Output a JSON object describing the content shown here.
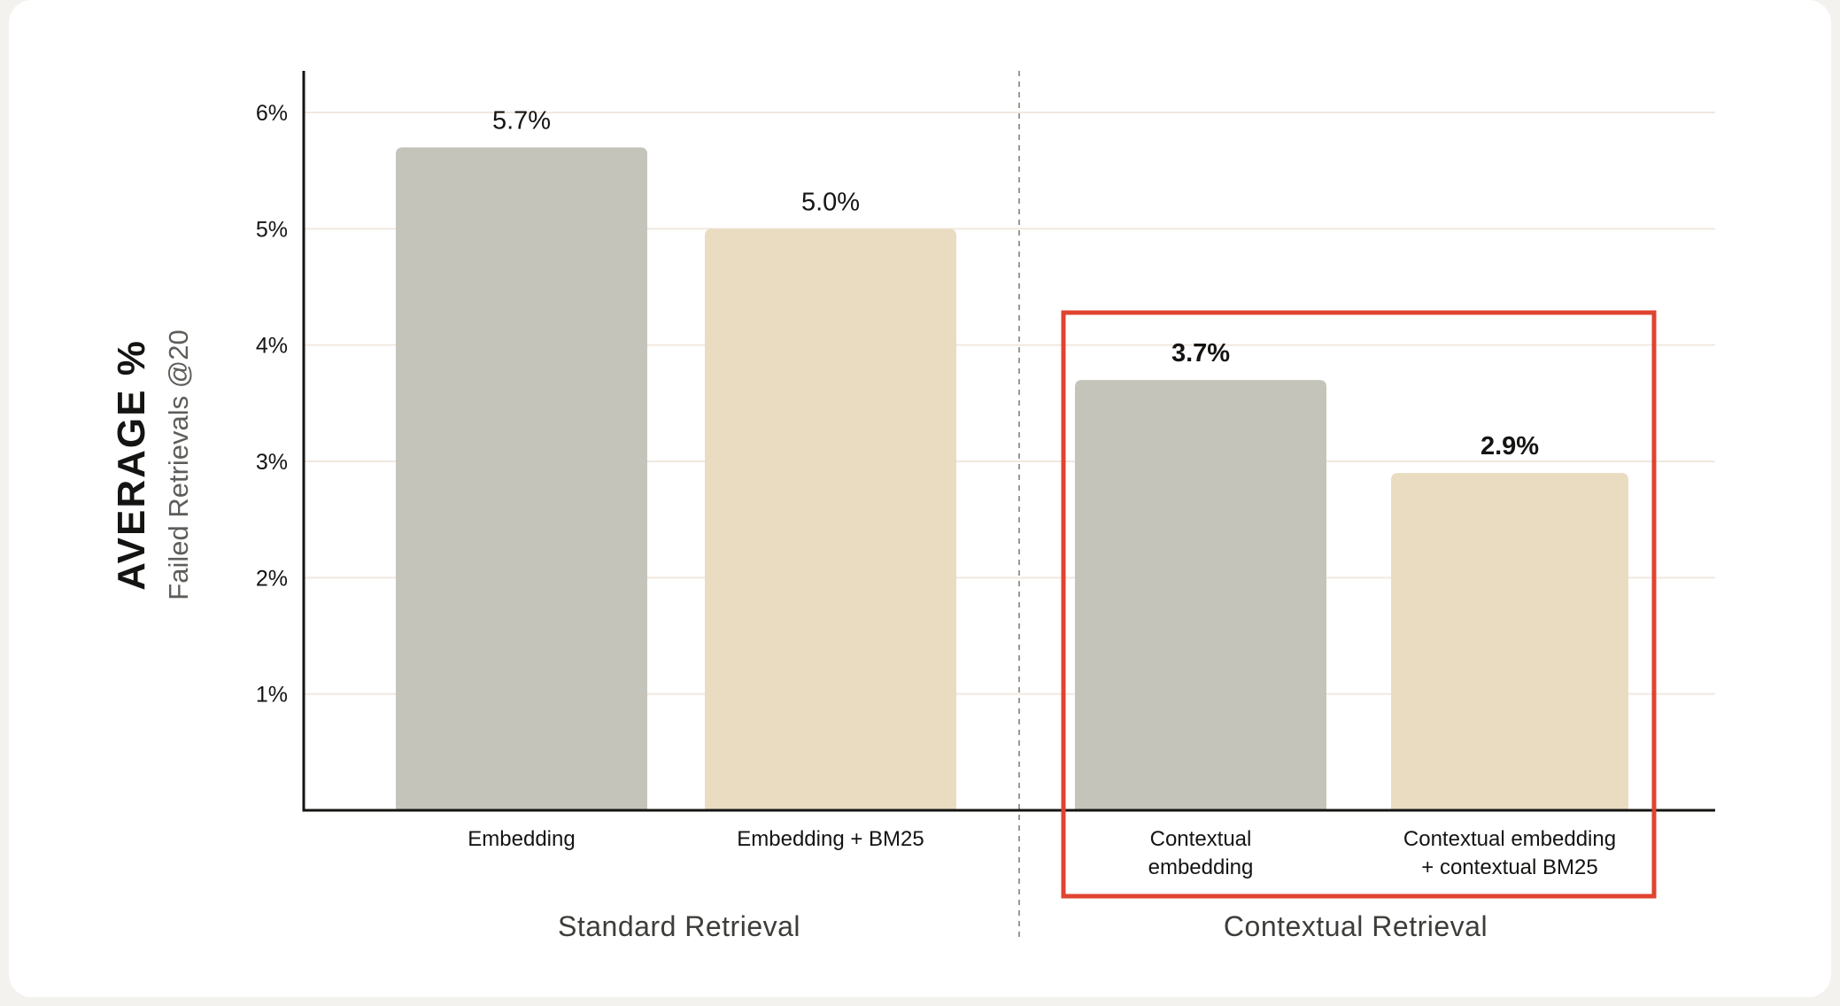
{
  "chart_data": {
    "type": "bar",
    "ylabel": "AVERAGE %",
    "ylabel_sub": "Failed Retrievals @20",
    "ylim": [
      0,
      6.4
    ],
    "yticks": [
      {
        "value": 1,
        "label": "1%"
      },
      {
        "value": 2,
        "label": "2%"
      },
      {
        "value": 3,
        "label": "3%"
      },
      {
        "value": 4,
        "label": "4%"
      },
      {
        "value": 5,
        "label": "5%"
      },
      {
        "value": 6,
        "label": "6%"
      }
    ],
    "grid": true,
    "categories": [
      {
        "label": [
          "Embedding"
        ],
        "value": 5.7,
        "value_label": "5.7%",
        "color": "#c4c4bb",
        "group": 0,
        "bold": false
      },
      {
        "label": [
          "Embedding + BM25"
        ],
        "value": 5.0,
        "value_label": "5.0%",
        "color": "#e9dcc0",
        "group": 0,
        "bold": false
      },
      {
        "label": [
          "Contextual",
          "embedding"
        ],
        "value": 3.7,
        "value_label": "3.7%",
        "color": "#c4c4bb",
        "group": 1,
        "bold": true
      },
      {
        "label": [
          "Contextual embedding",
          "+ contextual BM25"
        ],
        "value": 2.9,
        "value_label": "2.9%",
        "color": "#e9dcc0",
        "group": 1,
        "bold": true
      }
    ],
    "groups": [
      "Standard Retrieval",
      "Contextual Retrieval"
    ],
    "highlight_group": 1,
    "colors": {
      "embedding": "#c4c4bb",
      "bm25": "#e9dcc0",
      "highlight": "#e0432f",
      "grid": "#f2e8df",
      "axis": "#141413",
      "divider": "#9a9a95"
    }
  }
}
